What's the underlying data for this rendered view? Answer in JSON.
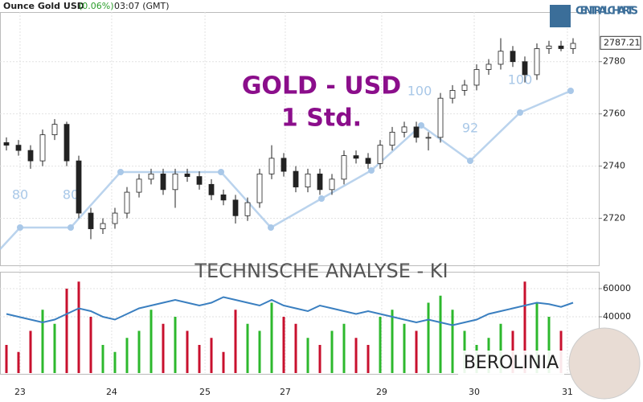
{
  "chart_data": {
    "type": "candlestick",
    "instrument": "Ounce Gold USD",
    "change": "(0.06%)",
    "time": "03:07 (GMT)",
    "title": "GOLD - USD",
    "subtitle": "1 Std.",
    "banner": "TECHNISCHE  ANALYSE - KI",
    "brand": "CENTRAL CHARTS",
    "partner": "BEROLINIA",
    "watermark_labels": [
      "80",
      "80",
      "100",
      "92",
      "100"
    ],
    "last_price": 2787.21,
    "last_price_label": "2787.21",
    "up_color": "#ffffff",
    "down_color": "#222222",
    "open": [
      2749,
      2748,
      2746,
      2742,
      2752,
      2756,
      2742,
      2722,
      2716,
      2718,
      2722,
      2730,
      2735,
      2737,
      2731,
      2737,
      2736,
      2733,
      2729,
      2727,
      2721,
      2726,
      2737,
      2743,
      2738,
      2732,
      2737,
      2731,
      2735,
      2744,
      2743,
      2741,
      2748,
      2753,
      2755,
      2751,
      2751,
      2766,
      2769,
      2771,
      2777,
      2779,
      2784,
      2780,
      2775,
      2785,
      2786,
      2785
    ],
    "high": [
      2751,
      2750,
      2748,
      2754,
      2758,
      2757,
      2744,
      2724,
      2720,
      2724,
      2732,
      2737,
      2739,
      2739,
      2739,
      2739,
      2738,
      2735,
      2731,
      2729,
      2728,
      2739,
      2748,
      2745,
      2740,
      2739,
      2739,
      2737,
      2746,
      2746,
      2745,
      2750,
      2755,
      2757,
      2757,
      2753,
      2768,
      2771,
      2773,
      2779,
      2781,
      2789,
      2786,
      2782,
      2787,
      2788,
      2788,
      2789
    ],
    "low": [
      2746,
      2744,
      2739,
      2740,
      2750,
      2740,
      2720,
      2712,
      2714,
      2716,
      2720,
      2728,
      2733,
      2729,
      2724,
      2734,
      2731,
      2727,
      2725,
      2718,
      2719,
      2724,
      2735,
      2736,
      2730,
      2730,
      2729,
      2729,
      2733,
      2741,
      2739,
      2739,
      2746,
      2751,
      2749,
      2746,
      2749,
      2764,
      2767,
      2769,
      2775,
      2777,
      2778,
      2772,
      2773,
      2783,
      2784,
      2783
    ],
    "close": [
      2748,
      2746,
      2742,
      2752,
      2756,
      2742,
      2722,
      2716,
      2718,
      2722,
      2730,
      2735,
      2737,
      2731,
      2737,
      2736,
      2733,
      2729,
      2727,
      2721,
      2726,
      2737,
      2743,
      2738,
      2732,
      2737,
      2731,
      2735,
      2744,
      2743,
      2741,
      2748,
      2753,
      2755,
      2751,
      2751,
      2766,
      2769,
      2771,
      2777,
      2779,
      2784,
      2780,
      2775,
      2785,
      2786,
      2785,
      2787
    ],
    "ylim": [
      2702,
      2799
    ],
    "yticks": [
      2720,
      2740,
      2760,
      2780
    ],
    "xticks": [
      {
        "value": 1.13,
        "label": "23"
      },
      {
        "value": 8.73,
        "label": "24"
      },
      {
        "value": 16.47,
        "label": "25"
      },
      {
        "value": 23.13,
        "label": "27"
      },
      {
        "value": 31.13,
        "label": "29"
      },
      {
        "value": 38.8,
        "label": "30"
      },
      {
        "value": 46.53,
        "label": "31"
      }
    ],
    "volume": {
      "values": [
        20000,
        15000,
        30000,
        45000,
        35000,
        60000,
        65000,
        40000,
        20000,
        15000,
        25000,
        30000,
        45000,
        35000,
        40000,
        30000,
        20000,
        25000,
        15000,
        45000,
        35000,
        30000,
        50000,
        40000,
        35000,
        25000,
        20000,
        30000,
        35000,
        25000,
        20000,
        40000,
        45000,
        35000,
        30000,
        50000,
        55000,
        45000,
        30000,
        20000,
        25000,
        35000,
        30000,
        65000,
        50000,
        40000,
        30000,
        15000
      ],
      "line": [
        42000,
        40000,
        38000,
        36000,
        38000,
        42000,
        46000,
        44000,
        40000,
        38000,
        42000,
        46000,
        48000,
        50000,
        52000,
        50000,
        48000,
        50000,
        54000,
        52000,
        50000,
        48000,
        52000,
        48000,
        46000,
        44000,
        48000,
        46000,
        44000,
        42000,
        44000,
        42000,
        40000,
        38000,
        36000,
        38000,
        36000,
        34000,
        36000,
        38000,
        42000,
        44000,
        46000,
        48000,
        50000,
        49000,
        47000,
        50000
      ],
      "up_color": "#2db82d",
      "down_color": "#c8102e",
      "line_color": "#3a7fc0",
      "ylim": [
        0,
        72000
      ],
      "yticks": [
        40000,
        60000
      ]
    }
  }
}
